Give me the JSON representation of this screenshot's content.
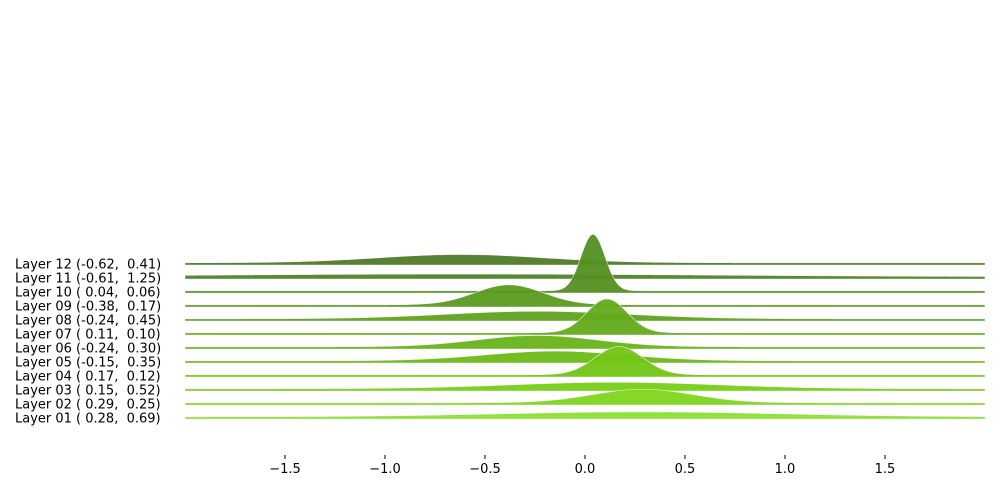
{
  "chart_data": {
    "type": "area",
    "subtype": "ridgeline",
    "title": "",
    "xlabel": "",
    "ylabel": "",
    "xlim": [
      -2.0,
      2.0
    ],
    "x_ticks": [
      "−1.5",
      "−1.0",
      "−0.5",
      "0.0",
      "0.5",
      "1.0",
      "1.5"
    ],
    "x_tick_values": [
      -1.5,
      -1.0,
      -0.5,
      0.0,
      0.5,
      1.0,
      1.5
    ],
    "grid": false,
    "series": [
      {
        "name": "Layer 12 (-0.62,  0.41)",
        "mean": -0.62,
        "std": 0.41,
        "color": "#4f7a26"
      },
      {
        "name": "Layer 11 (-0.61,  1.25)",
        "mean": -0.61,
        "std": 1.25,
        "color": "#4f8427"
      },
      {
        "name": "Layer 10 ( 0.04,  0.06)",
        "mean": 0.04,
        "std": 0.06,
        "color": "#548f22"
      },
      {
        "name": "Layer 09 (-0.38,  0.17)",
        "mean": -0.38,
        "std": 0.17,
        "color": "#5a9a20"
      },
      {
        "name": "Layer 08 (-0.24,  0.45)",
        "mean": -0.24,
        "std": 0.45,
        "color": "#5fa31e"
      },
      {
        "name": "Layer 07 ( 0.11,  0.10)",
        "mean": 0.11,
        "std": 0.1,
        "color": "#63ab1c"
      },
      {
        "name": "Layer 06 (-0.24,  0.30)",
        "mean": -0.24,
        "std": 0.3,
        "color": "#68b31a"
      },
      {
        "name": "Layer 05 (-0.15,  0.35)",
        "mean": -0.15,
        "std": 0.35,
        "color": "#6dbb18"
      },
      {
        "name": "Layer 04 ( 0.17,  0.12)",
        "mean": 0.17,
        "std": 0.12,
        "color": "#72c516"
      },
      {
        "name": "Layer 03 ( 0.15,  0.52)",
        "mean": 0.15,
        "std": 0.52,
        "color": "#77cd16"
      },
      {
        "name": "Layer 02 ( 0.29,  0.25)",
        "mean": 0.29,
        "std": 0.25,
        "color": "#7ed61c"
      },
      {
        "name": "Layer 01 ( 0.28,  0.69)",
        "mean": 0.28,
        "std": 0.69,
        "color": "#88e030"
      }
    ]
  }
}
